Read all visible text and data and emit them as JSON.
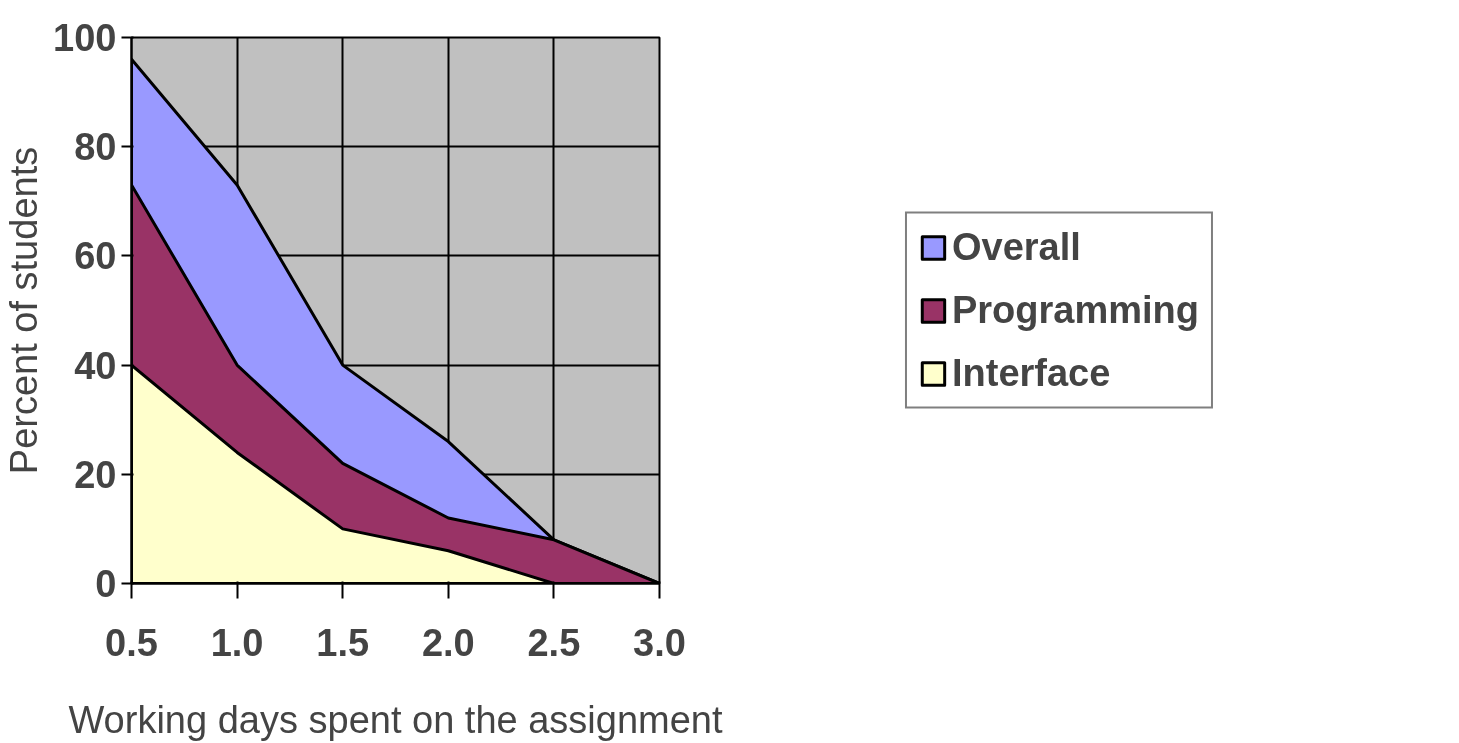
{
  "chart_data": {
    "type": "area",
    "xlabel": "Working days spent on the assignment",
    "ylabel": "Percent of students",
    "x": [
      0.5,
      1.0,
      1.5,
      2.0,
      2.5,
      3.0
    ],
    "series": [
      {
        "name": "Overall",
        "color": "#9999ff",
        "values": [
          96,
          73,
          40,
          26,
          8,
          0
        ]
      },
      {
        "name": "Programming",
        "color": "#993366",
        "values": [
          73,
          40,
          22,
          12,
          8,
          0
        ]
      },
      {
        "name": "Interface",
        "color": "#ffffcc",
        "values": [
          40,
          24,
          10,
          6,
          0,
          0
        ]
      }
    ],
    "xlim": [
      0.5,
      3.0
    ],
    "ylim": [
      0,
      100
    ],
    "xticks": [
      0.5,
      {
        "value": 1.0,
        "label": "1.0"
      },
      1.5,
      {
        "value": 2.0,
        "label": "2.0"
      },
      2.5,
      {
        "value": 3.0,
        "label": "3.0"
      }
    ],
    "yticks": [
      0,
      20,
      40,
      60,
      80,
      100
    ],
    "grid": true,
    "legend": "right"
  }
}
